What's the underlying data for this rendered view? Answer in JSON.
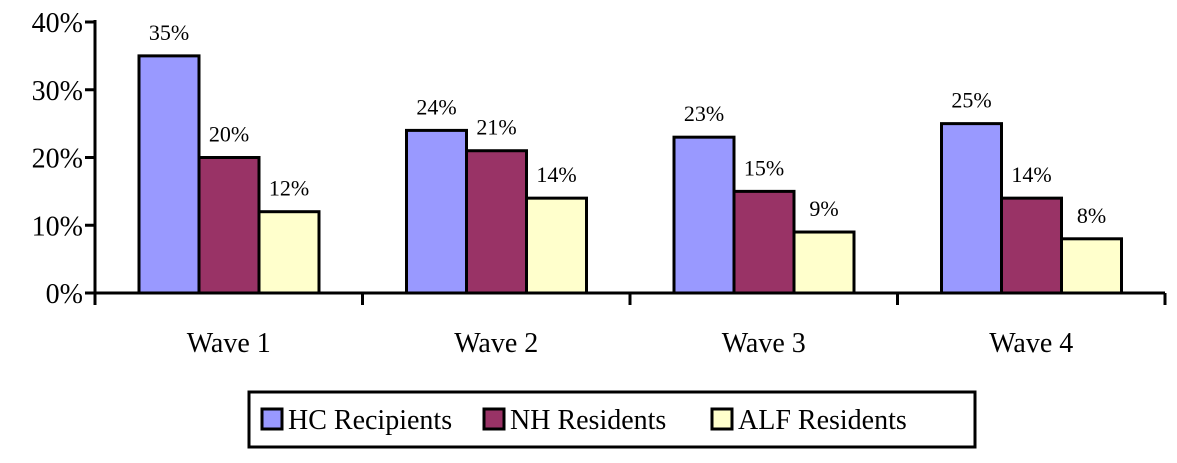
{
  "chart_data": {
    "type": "bar",
    "categories": [
      "Wave 1",
      "Wave 2",
      "Wave 3",
      "Wave 4"
    ],
    "series": [
      {
        "name": "HC Recipients",
        "values": [
          35,
          24,
          23,
          25
        ],
        "color": "#9999FF"
      },
      {
        "name": "NH Residents",
        "values": [
          20,
          21,
          15,
          14
        ],
        "color": "#993366"
      },
      {
        "name": "ALF Residents",
        "values": [
          12,
          14,
          9,
          8
        ],
        "color": "#FFFFCC"
      }
    ],
    "data_labels": [
      [
        "35%",
        "24%",
        "23%",
        "25%"
      ],
      [
        "20%",
        "21%",
        "15%",
        "14%"
      ],
      [
        "12%",
        "14%",
        "9%",
        "8%"
      ]
    ],
    "yticks": [
      "0%",
      "10%",
      "20%",
      "30%",
      "40%"
    ],
    "ylim": [
      0,
      40
    ],
    "grid": false,
    "legend_position": "bottom",
    "title": "",
    "xlabel": "",
    "ylabel": ""
  }
}
